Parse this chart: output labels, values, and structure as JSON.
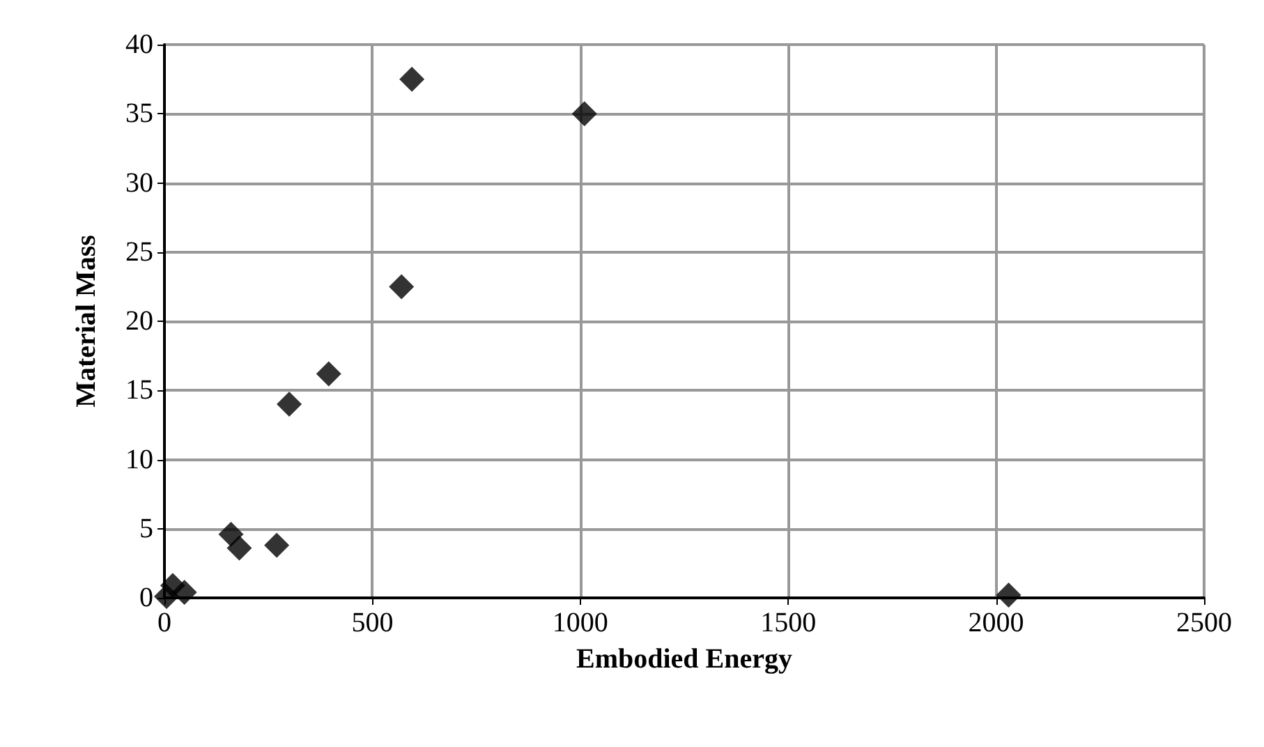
{
  "chart_data": {
    "type": "scatter",
    "xlabel": "Embodied Energy",
    "ylabel": "Material Mass",
    "x": [
      5,
      20,
      48,
      160,
      180,
      270,
      300,
      395,
      570,
      595,
      1010,
      2030
    ],
    "values": [
      0.1,
      0.9,
      0.4,
      4.6,
      3.6,
      3.8,
      14,
      16.2,
      22.5,
      37.5,
      35,
      0.2
    ],
    "color": "#000000",
    "marker": "diamond",
    "grid": true,
    "xlim": [
      0,
      2500
    ],
    "xticks": [
      0,
      500,
      1000,
      1500,
      2000,
      2500
    ],
    "ylim": [
      0,
      40
    ],
    "yticks": [
      0,
      5,
      10,
      15,
      20,
      25,
      30,
      35,
      40
    ]
  }
}
